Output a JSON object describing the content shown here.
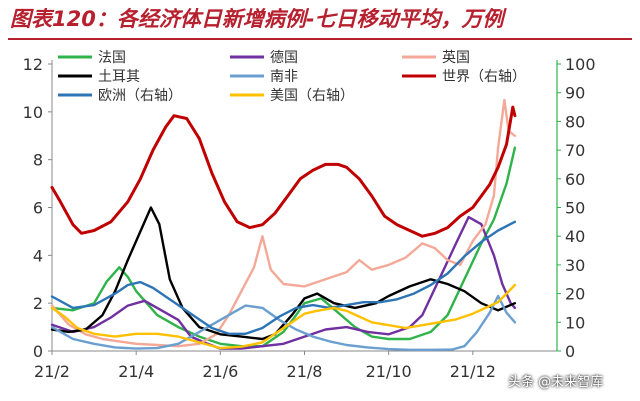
{
  "title": "图表120：各经济体日新增病例-七日移动平均，万例",
  "watermark": "头条 @未来智库",
  "chart_data": {
    "type": "line",
    "x_ticks": [
      "21/2",
      "21/4",
      "21/6",
      "21/8",
      "21/10",
      "21/12"
    ],
    "x_domain": [
      0,
      12
    ],
    "y_left": {
      "ticks": [
        0,
        2,
        4,
        6,
        8,
        10,
        12
      ],
      "ylim": [
        0,
        12
      ]
    },
    "y_right": {
      "ticks": [
        0,
        10,
        20,
        30,
        40,
        50,
        60,
        70,
        80,
        90,
        100
      ],
      "ylim": [
        0,
        100
      ]
    },
    "legend_placement": "top",
    "series": [
      {
        "name": "法国",
        "color": "#2fb34a",
        "axis": "left",
        "points": [
          [
            0,
            1.8
          ],
          [
            0.5,
            1.7
          ],
          [
            1,
            2.0
          ],
          [
            1.3,
            2.9
          ],
          [
            1.6,
            3.5
          ],
          [
            1.8,
            3.1
          ],
          [
            2.0,
            2.5
          ],
          [
            2.5,
            1.5
          ],
          [
            3,
            1.0
          ],
          [
            3.5,
            0.6
          ],
          [
            4,
            0.3
          ],
          [
            4.5,
            0.2
          ],
          [
            5,
            0.2
          ],
          [
            5.5,
            0.8
          ],
          [
            5.8,
            1.5
          ],
          [
            6,
            2.0
          ],
          [
            6.4,
            2.2
          ],
          [
            6.8,
            1.6
          ],
          [
            7.2,
            1.0
          ],
          [
            7.6,
            0.6
          ],
          [
            8,
            0.5
          ],
          [
            8.5,
            0.5
          ],
          [
            9,
            0.8
          ],
          [
            9.4,
            1.5
          ],
          [
            9.8,
            3.0
          ],
          [
            10.2,
            4.5
          ],
          [
            10.5,
            5.5
          ],
          [
            10.8,
            7.0
          ],
          [
            11,
            8.5
          ]
        ]
      },
      {
        "name": "德国",
        "color": "#7030a0",
        "axis": "left",
        "points": [
          [
            0,
            1.1
          ],
          [
            0.5,
            0.8
          ],
          [
            1,
            1.0
          ],
          [
            1.4,
            1.4
          ],
          [
            1.8,
            1.9
          ],
          [
            2.2,
            2.1
          ],
          [
            2.5,
            1.8
          ],
          [
            3,
            1.3
          ],
          [
            3.3,
            0.6
          ],
          [
            3.7,
            0.3
          ],
          [
            4,
            0.1
          ],
          [
            4.5,
            0.1
          ],
          [
            5,
            0.2
          ],
          [
            5.5,
            0.3
          ],
          [
            6,
            0.6
          ],
          [
            6.5,
            0.9
          ],
          [
            7,
            1.0
          ],
          [
            7.5,
            0.8
          ],
          [
            8,
            0.7
          ],
          [
            8.5,
            1.0
          ],
          [
            8.8,
            1.5
          ],
          [
            9.2,
            3.0
          ],
          [
            9.6,
            4.5
          ],
          [
            9.9,
            5.6
          ],
          [
            10.2,
            5.3
          ],
          [
            10.5,
            4.0
          ],
          [
            10.7,
            2.8
          ],
          [
            10.9,
            2.0
          ],
          [
            11,
            1.8
          ]
        ]
      },
      {
        "name": "英国",
        "color": "#f4a998",
        "axis": "left",
        "points": [
          [
            0,
            1.9
          ],
          [
            0.4,
            1.1
          ],
          [
            0.8,
            0.7
          ],
          [
            1.2,
            0.5
          ],
          [
            1.6,
            0.4
          ],
          [
            2,
            0.3
          ],
          [
            2.5,
            0.25
          ],
          [
            3,
            0.2
          ],
          [
            3.5,
            0.3
          ],
          [
            3.9,
            0.7
          ],
          [
            4.2,
            1.5
          ],
          [
            4.5,
            2.5
          ],
          [
            4.8,
            3.5
          ],
          [
            5,
            4.8
          ],
          [
            5.2,
            3.4
          ],
          [
            5.5,
            2.8
          ],
          [
            6,
            2.7
          ],
          [
            6.5,
            3.0
          ],
          [
            7,
            3.3
          ],
          [
            7.3,
            3.8
          ],
          [
            7.6,
            3.4
          ],
          [
            8,
            3.6
          ],
          [
            8.4,
            3.9
          ],
          [
            8.8,
            4.5
          ],
          [
            9.1,
            4.3
          ],
          [
            9.4,
            3.8
          ],
          [
            9.7,
            3.6
          ],
          [
            10,
            4.6
          ],
          [
            10.3,
            5.3
          ],
          [
            10.5,
            6.5
          ],
          [
            10.6,
            8.5
          ],
          [
            10.75,
            10.5
          ],
          [
            10.85,
            9.2
          ],
          [
            11,
            9.0
          ]
        ]
      },
      {
        "name": "土耳其",
        "color": "#000000",
        "axis": "left",
        "points": [
          [
            0,
            0.9
          ],
          [
            0.4,
            0.8
          ],
          [
            0.8,
            0.9
          ],
          [
            1.2,
            1.5
          ],
          [
            1.5,
            2.5
          ],
          [
            1.8,
            3.8
          ],
          [
            2.1,
            5.0
          ],
          [
            2.35,
            6.0
          ],
          [
            2.55,
            5.3
          ],
          [
            2.8,
            3.0
          ],
          [
            3.1,
            1.8
          ],
          [
            3.5,
            1.0
          ],
          [
            4,
            0.7
          ],
          [
            4.5,
            0.6
          ],
          [
            5,
            0.5
          ],
          [
            5.3,
            0.7
          ],
          [
            5.7,
            1.5
          ],
          [
            6,
            2.2
          ],
          [
            6.3,
            2.4
          ],
          [
            6.7,
            2.0
          ],
          [
            7.2,
            1.8
          ],
          [
            7.7,
            2.0
          ],
          [
            8,
            2.3
          ],
          [
            8.5,
            2.7
          ],
          [
            9,
            3.0
          ],
          [
            9.4,
            2.8
          ],
          [
            9.8,
            2.5
          ],
          [
            10.2,
            2.0
          ],
          [
            10.6,
            1.7
          ],
          [
            11,
            2.0
          ]
        ]
      },
      {
        "name": "南非",
        "color": "#6a9fd0",
        "axis": "left",
        "points": [
          [
            0,
            1.0
          ],
          [
            0.5,
            0.5
          ],
          [
            1,
            0.3
          ],
          [
            1.5,
            0.15
          ],
          [
            2,
            0.1
          ],
          [
            2.5,
            0.12
          ],
          [
            3,
            0.3
          ],
          [
            3.5,
            0.8
          ],
          [
            4,
            1.3
          ],
          [
            4.3,
            1.6
          ],
          [
            4.6,
            1.9
          ],
          [
            5,
            1.8
          ],
          [
            5.4,
            1.3
          ],
          [
            5.8,
            0.9
          ],
          [
            6.2,
            0.6
          ],
          [
            6.6,
            0.4
          ],
          [
            7,
            0.25
          ],
          [
            7.5,
            0.15
          ],
          [
            8,
            0.08
          ],
          [
            8.5,
            0.05
          ],
          [
            9,
            0.05
          ],
          [
            9.5,
            0.06
          ],
          [
            9.8,
            0.2
          ],
          [
            10.1,
            0.8
          ],
          [
            10.4,
            1.6
          ],
          [
            10.6,
            2.3
          ],
          [
            10.8,
            1.6
          ],
          [
            11,
            1.2
          ]
        ]
      },
      {
        "name": "世界（右轴）",
        "color": "#c00000",
        "axis": "right",
        "points": [
          [
            0,
            57
          ],
          [
            0.2,
            52
          ],
          [
            0.5,
            44
          ],
          [
            0.7,
            41
          ],
          [
            1,
            42
          ],
          [
            1.4,
            45
          ],
          [
            1.8,
            52
          ],
          [
            2.1,
            60
          ],
          [
            2.4,
            70
          ],
          [
            2.7,
            78
          ],
          [
            2.9,
            82
          ],
          [
            3.2,
            81
          ],
          [
            3.5,
            74
          ],
          [
            3.8,
            62
          ],
          [
            4.1,
            52
          ],
          [
            4.4,
            45
          ],
          [
            4.7,
            43
          ],
          [
            5,
            44
          ],
          [
            5.3,
            48
          ],
          [
            5.6,
            54
          ],
          [
            5.9,
            60
          ],
          [
            6.2,
            63
          ],
          [
            6.5,
            65
          ],
          [
            6.8,
            65
          ],
          [
            7,
            64
          ],
          [
            7.3,
            60
          ],
          [
            7.6,
            54
          ],
          [
            7.9,
            47
          ],
          [
            8.2,
            44
          ],
          [
            8.5,
            42
          ],
          [
            8.8,
            40
          ],
          [
            9.1,
            41
          ],
          [
            9.4,
            43
          ],
          [
            9.7,
            47
          ],
          [
            10,
            50
          ],
          [
            10.2,
            54
          ],
          [
            10.4,
            58
          ],
          [
            10.6,
            64
          ],
          [
            10.8,
            72
          ],
          [
            10.95,
            85
          ],
          [
            11,
            82
          ]
        ]
      },
      {
        "name": "欧洲（右轴）",
        "color": "#2e75b6",
        "axis": "right",
        "points": [
          [
            0,
            19
          ],
          [
            0.5,
            15
          ],
          [
            1,
            16
          ],
          [
            1.5,
            20
          ],
          [
            1.8,
            23
          ],
          [
            2.1,
            24
          ],
          [
            2.4,
            22
          ],
          [
            2.7,
            19
          ],
          [
            3,
            16
          ],
          [
            3.4,
            12
          ],
          [
            3.8,
            8
          ],
          [
            4.2,
            6
          ],
          [
            4.6,
            6
          ],
          [
            5,
            8
          ],
          [
            5.4,
            12
          ],
          [
            5.8,
            15
          ],
          [
            6.2,
            16
          ],
          [
            6.6,
            15
          ],
          [
            7,
            16
          ],
          [
            7.4,
            17
          ],
          [
            7.8,
            17
          ],
          [
            8.2,
            18
          ],
          [
            8.6,
            20
          ],
          [
            9,
            23
          ],
          [
            9.4,
            27
          ],
          [
            9.8,
            33
          ],
          [
            10.2,
            38
          ],
          [
            10.6,
            42
          ],
          [
            11,
            45
          ]
        ]
      },
      {
        "name": "美国（右轴）",
        "color": "#ffc000",
        "axis": "right",
        "points": [
          [
            0,
            15
          ],
          [
            0.3,
            12
          ],
          [
            0.6,
            8
          ],
          [
            1,
            6
          ],
          [
            1.5,
            5
          ],
          [
            2,
            6
          ],
          [
            2.5,
            6
          ],
          [
            3,
            5
          ],
          [
            3.5,
            3
          ],
          [
            4,
            1
          ],
          [
            4.5,
            1.5
          ],
          [
            5,
            3
          ],
          [
            5.5,
            8
          ],
          [
            6,
            13
          ],
          [
            6.3,
            14
          ],
          [
            6.7,
            15
          ],
          [
            7,
            14
          ],
          [
            7.3,
            12
          ],
          [
            7.6,
            10
          ],
          [
            8,
            9
          ],
          [
            8.4,
            8
          ],
          [
            8.8,
            9
          ],
          [
            9.2,
            10
          ],
          [
            9.6,
            11
          ],
          [
            10,
            13
          ],
          [
            10.3,
            15
          ],
          [
            10.6,
            17
          ],
          [
            10.8,
            20
          ],
          [
            11,
            23
          ]
        ]
      }
    ]
  }
}
